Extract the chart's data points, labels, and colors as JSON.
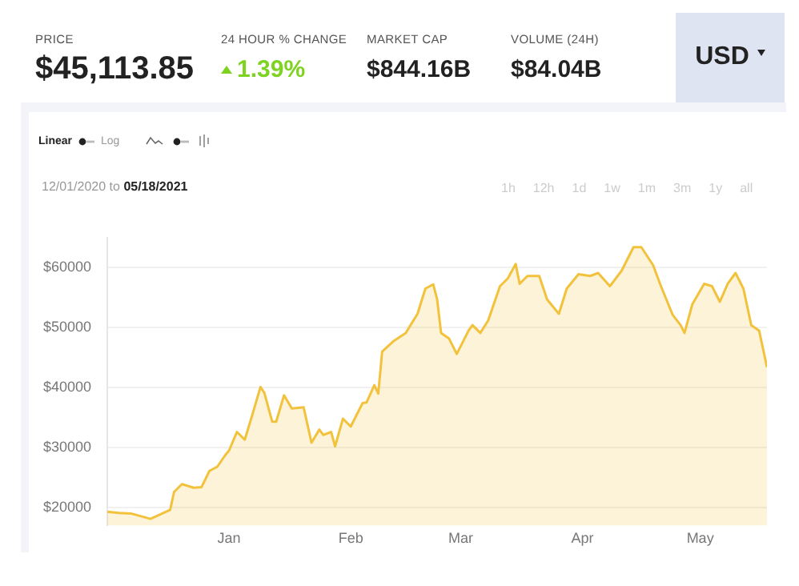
{
  "chart_data": {
    "type": "area",
    "xlim": [
      "2020-12-01",
      "2021-05-18"
    ],
    "xticks": [
      {
        "value": "2021-01-01",
        "label": "Jan"
      },
      {
        "value": "2021-02-01",
        "label": "Feb"
      },
      {
        "value": "2021-03-01",
        "label": "Mar"
      },
      {
        "value": "2021-04-01",
        "label": "Apr"
      },
      {
        "value": "2021-05-01",
        "label": "May"
      }
    ],
    "ylim": [
      17000,
      65000
    ],
    "yticks": [
      {
        "value": 20000,
        "label": "$20000"
      },
      {
        "value": 30000,
        "label": "$30000"
      },
      {
        "value": 40000,
        "label": "$40000"
      },
      {
        "value": 50000,
        "label": "$50000"
      },
      {
        "value": 60000,
        "label": "$60000"
      }
    ],
    "grid": "y",
    "legend": false,
    "marker": "none",
    "line_style": "solid",
    "series": [
      {
        "color": "#f2c23c",
        "x": [
          "2020-12-01",
          "2020-12-04",
          "2020-12-07",
          "2020-12-12",
          "2020-12-17",
          "2020-12-18",
          "2020-12-20",
          "2020-12-23",
          "2020-12-25",
          "2020-12-27",
          "2020-12-29",
          "2020-12-31",
          "2021-01-01",
          "2021-01-03",
          "2021-01-05",
          "2021-01-07",
          "2021-01-09",
          "2021-01-10",
          "2021-01-12",
          "2021-01-13",
          "2021-01-15",
          "2021-01-17",
          "2021-01-20",
          "2021-01-22",
          "2021-01-24",
          "2021-01-25",
          "2021-01-27",
          "2021-01-28",
          "2021-01-30",
          "2021-02-01",
          "2021-02-04",
          "2021-02-05",
          "2021-02-07",
          "2021-02-08",
          "2021-02-09",
          "2021-02-12",
          "2021-02-15",
          "2021-02-18",
          "2021-02-20",
          "2021-02-22",
          "2021-02-23",
          "2021-02-24",
          "2021-02-26",
          "2021-02-28",
          "2021-03-03",
          "2021-03-04",
          "2021-03-06",
          "2021-03-08",
          "2021-03-11",
          "2021-03-13",
          "2021-03-15",
          "2021-03-16",
          "2021-03-18",
          "2021-03-21",
          "2021-03-23",
          "2021-03-26",
          "2021-03-28",
          "2021-03-31",
          "2021-04-03",
          "2021-04-05",
          "2021-04-08",
          "2021-04-11",
          "2021-04-14",
          "2021-04-16",
          "2021-04-19",
          "2021-04-21",
          "2021-04-24",
          "2021-04-26",
          "2021-04-27",
          "2021-04-29",
          "2021-05-02",
          "2021-05-04",
          "2021-05-06",
          "2021-05-08",
          "2021-05-10",
          "2021-05-12",
          "2021-05-14",
          "2021-05-16",
          "2021-05-18"
        ],
        "values": [
          19300,
          19100,
          19000,
          18100,
          19600,
          22600,
          23900,
          23300,
          23400,
          26100,
          26800,
          28700,
          29500,
          32600,
          31300,
          35600,
          40100,
          39100,
          34300,
          34300,
          38700,
          36500,
          36700,
          30800,
          33000,
          32100,
          32600,
          30200,
          34800,
          33500,
          37400,
          37500,
          40400,
          39000,
          46000,
          47800,
          49100,
          52300,
          56500,
          57200,
          54700,
          49100,
          48200,
          45600,
          49500,
          50400,
          49100,
          51200,
          56900,
          58200,
          60600,
          57300,
          58600,
          58600,
          54700,
          52300,
          56500,
          58900,
          58600,
          59100,
          56900,
          59500,
          63400,
          63400,
          60400,
          56900,
          52100,
          50400,
          49100,
          53900,
          57300,
          56900,
          54300,
          57300,
          59100,
          56500,
          50400,
          49500,
          43400
        ]
      }
    ],
    "annotations": [
      "PRICE",
      "$45,113.85",
      "24 HOUR % CHANGE",
      "1.39%",
      "MARKET CAP",
      "$844.16B",
      "VOLUME (24H)",
      "$84.04B",
      "USD",
      "Linear",
      "Log",
      "12/01/2020",
      "to",
      "05/18/2021",
      "1h",
      "12h",
      "1d",
      "1w",
      "1m",
      "3m",
      "1y",
      "all"
    ]
  }
}
